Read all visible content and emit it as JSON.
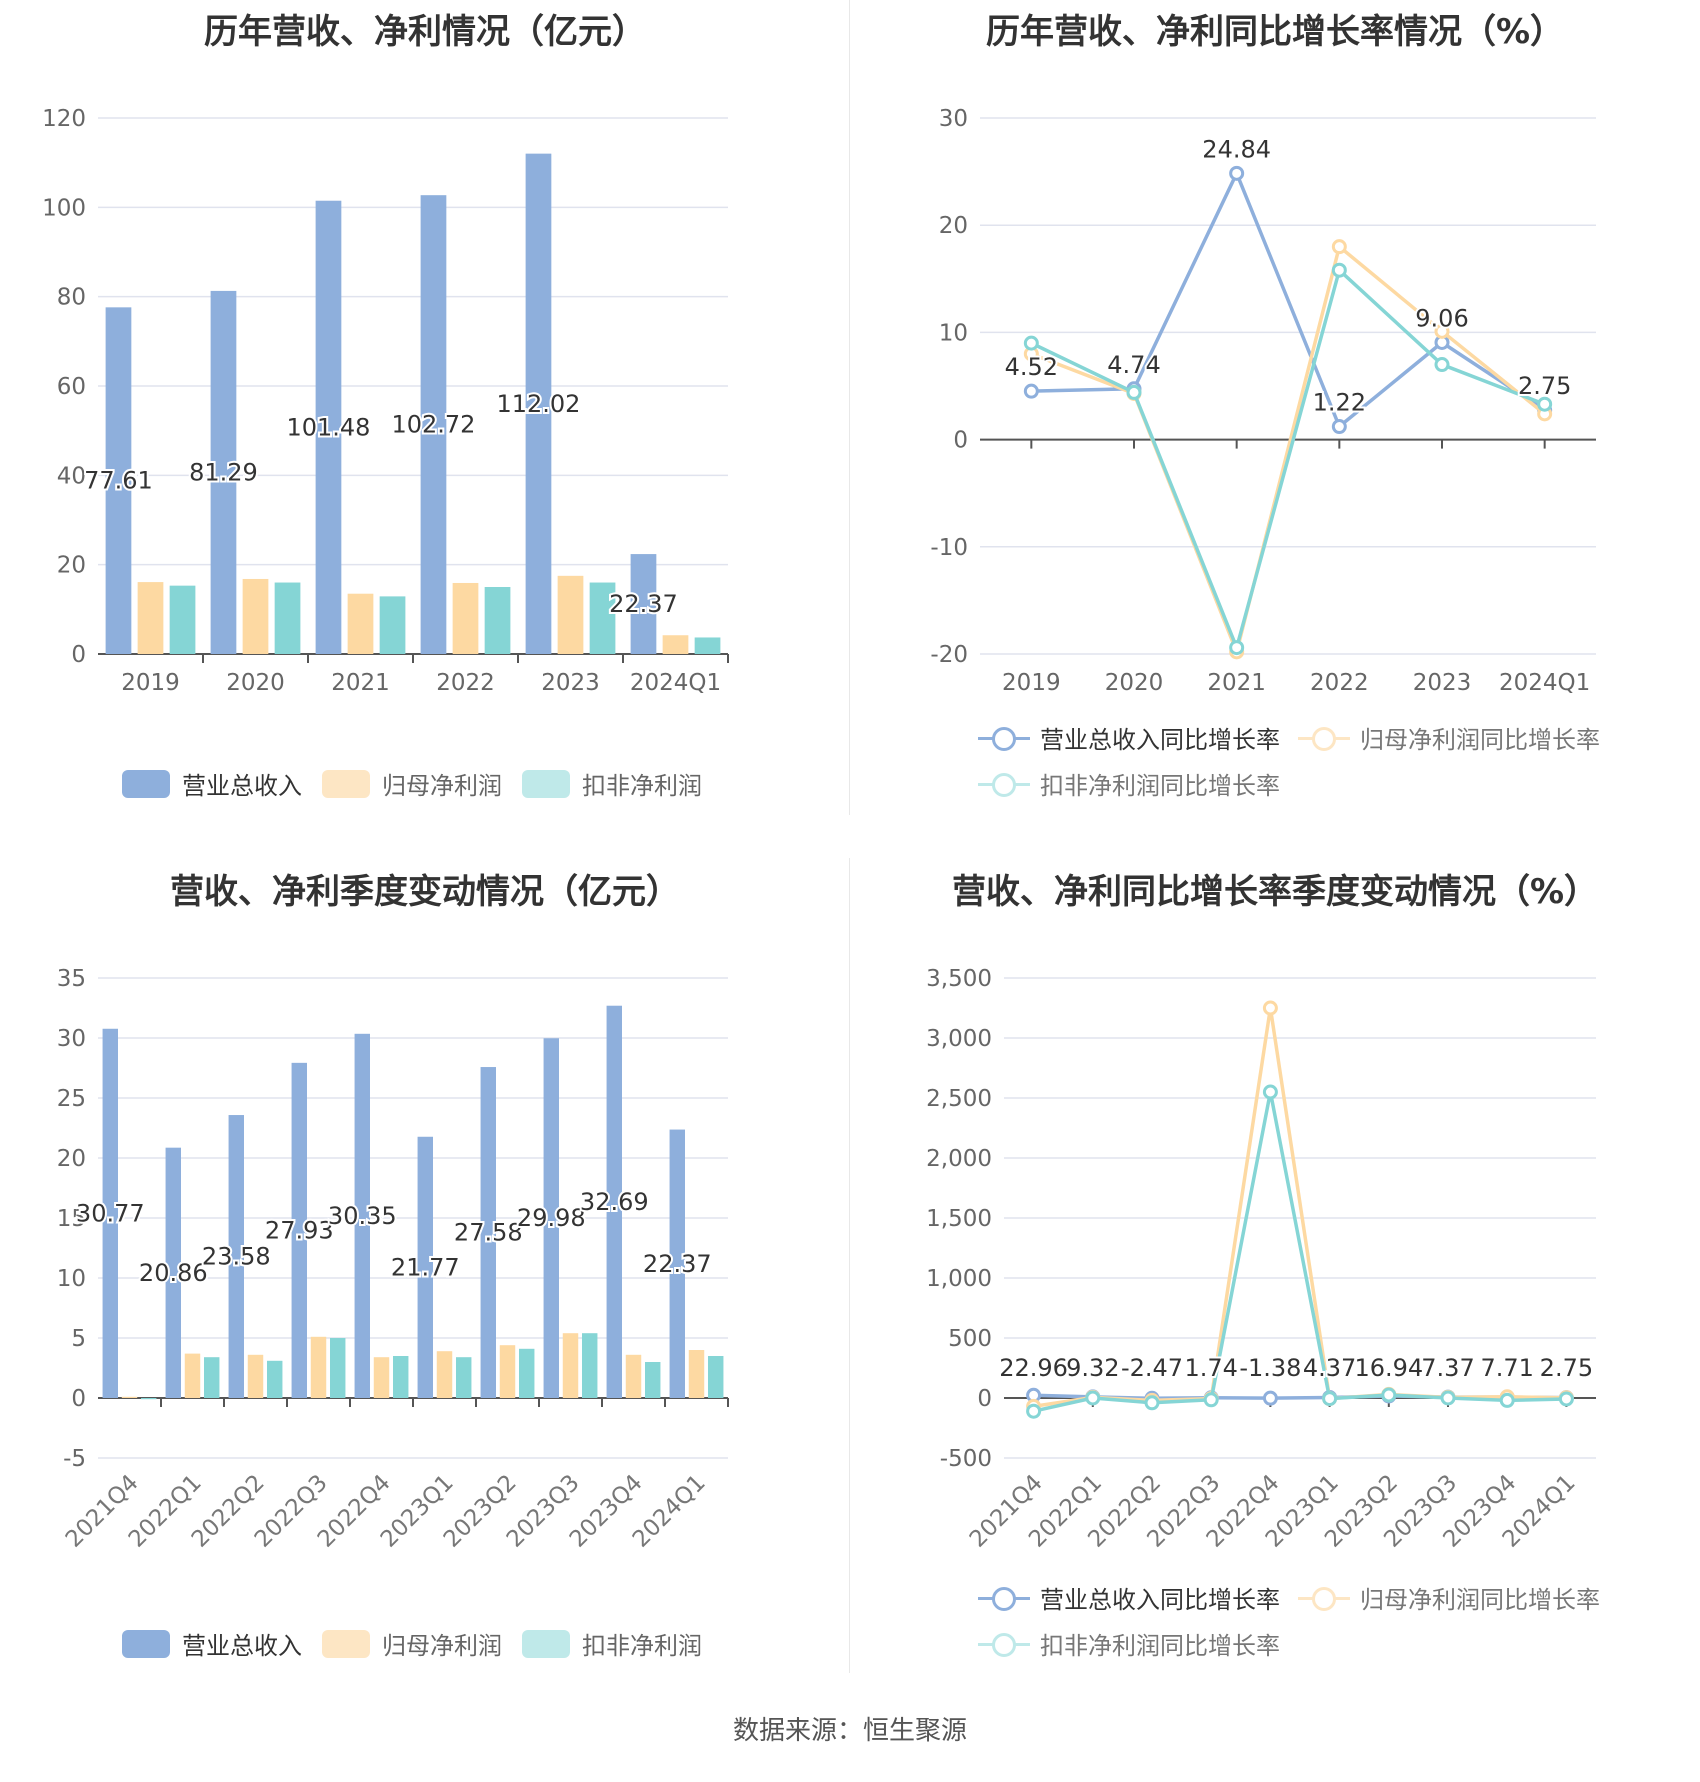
{
  "footer": {
    "source": "数据来源：恒生聚源"
  },
  "colors": {
    "revenue": "#8eafdc",
    "net_profit": "#fdd9a2",
    "deducted_profit": "#85d5d5",
    "grid": "#e0e3ee",
    "axis": "#666666"
  },
  "chart_data": [
    {
      "id": "annual-amounts",
      "type": "bar",
      "title": "历年营收、净利情况（亿元）",
      "categories": [
        "2019",
        "2020",
        "2021",
        "2022",
        "2023",
        "2024Q1"
      ],
      "yticks": [
        "0",
        "20",
        "40",
        "60",
        "80",
        "100",
        "120"
      ],
      "ylim": [
        0,
        120
      ],
      "grid": true,
      "legend_position": "bottom",
      "series": [
        {
          "name": "营业总收入",
          "values": [
            77.61,
            81.29,
            101.48,
            102.72,
            112.02,
            22.37
          ],
          "labels": [
            "77.61",
            "81.29",
            "101.48",
            "102.72",
            "112.02",
            "22.37"
          ]
        },
        {
          "name": "归母净利润",
          "values": [
            16.1,
            16.8,
            13.5,
            15.9,
            17.5,
            4.2
          ]
        },
        {
          "name": "扣非净利润",
          "values": [
            15.3,
            16.0,
            12.9,
            15.0,
            16.0,
            3.7
          ]
        }
      ]
    },
    {
      "id": "annual-growth",
      "type": "line",
      "title": "历年营收、净利同比增长率情况（%）",
      "categories": [
        "2019",
        "2020",
        "2021",
        "2022",
        "2023",
        "2024Q1"
      ],
      "yticks": [
        "-20",
        "-10",
        "0",
        "10",
        "20",
        "30"
      ],
      "ylim": [
        -20,
        30
      ],
      "grid": true,
      "legend_position": "bottom",
      "series": [
        {
          "name": "营业总收入同比增长率",
          "values": [
            4.52,
            4.74,
            24.84,
            1.22,
            9.06,
            2.75
          ],
          "labels": [
            "4.52",
            "4.74",
            "24.84",
            "1.22",
            "9.06",
            "2.75"
          ]
        },
        {
          "name": "归母净利润同比增长率",
          "values": [
            8.0,
            4.3,
            -19.8,
            18.0,
            10.1,
            2.4
          ]
        },
        {
          "name": "扣非净利润同比增长率",
          "values": [
            9.0,
            4.4,
            -19.4,
            15.8,
            7.0,
            3.3
          ]
        }
      ]
    },
    {
      "id": "quarterly-amounts",
      "type": "bar",
      "title": "营收、净利季度变动情况（亿元）",
      "categories": [
        "2021Q4",
        "2022Q1",
        "2022Q2",
        "2022Q3",
        "2022Q4",
        "2023Q1",
        "2023Q2",
        "2023Q3",
        "2023Q4",
        "2024Q1"
      ],
      "yticks": [
        "-5",
        "0",
        "5",
        "10",
        "15",
        "20",
        "25",
        "30",
        "35"
      ],
      "ylim": [
        -5,
        35
      ],
      "grid": true,
      "legend_position": "bottom",
      "series": [
        {
          "name": "营业总收入",
          "values": [
            30.77,
            20.86,
            23.58,
            27.93,
            30.35,
            21.77,
            27.58,
            29.98,
            32.69,
            22.37
          ],
          "labels": [
            "30.77",
            "20.86",
            "23.58",
            "27.93",
            "30.35",
            "21.77",
            "27.58",
            "29.98",
            "32.69",
            "22.37"
          ]
        },
        {
          "name": "归母净利润",
          "values": [
            0.1,
            3.7,
            3.6,
            5.1,
            3.4,
            3.9,
            4.4,
            5.4,
            3.6,
            4.0
          ]
        },
        {
          "name": "扣非净利润",
          "values": [
            -0.1,
            3.4,
            3.1,
            5.0,
            3.5,
            3.4,
            4.1,
            5.4,
            3.0,
            3.5
          ]
        }
      ]
    },
    {
      "id": "quarterly-growth",
      "type": "line",
      "title": "营收、净利同比增长率季度变动情况（%）",
      "categories": [
        "2021Q4",
        "2022Q1",
        "2022Q2",
        "2022Q3",
        "2022Q4",
        "2023Q1",
        "2023Q2",
        "2023Q3",
        "2023Q4",
        "2024Q1"
      ],
      "yticks": [
        "-500",
        "0",
        "500",
        "1,000",
        "1,500",
        "2,000",
        "2,500",
        "3,000",
        "3,500"
      ],
      "ylim": [
        -500,
        3500
      ],
      "grid": true,
      "legend_position": "bottom",
      "series": [
        {
          "name": "营业总收入同比增长率",
          "values": [
            22.96,
            9.32,
            -2.47,
            1.74,
            -1.38,
            4.37,
            16.94,
            7.37,
            7.71,
            2.75
          ],
          "labels": [
            "22.96",
            "9.32",
            "-2.47",
            "1.74",
            "-1.38",
            "4.37",
            "16.94",
            "7.37",
            "7.71",
            "2.75"
          ]
        },
        {
          "name": "归母净利润同比增长率",
          "values": [
            -70,
            5,
            -20,
            -5,
            3250,
            -5,
            30,
            5,
            10,
            2
          ]
        },
        {
          "name": "扣非净利润同比增长率",
          "values": [
            -110,
            0,
            -40,
            -15,
            2550,
            -5,
            25,
            0,
            -20,
            -8
          ]
        }
      ]
    }
  ]
}
